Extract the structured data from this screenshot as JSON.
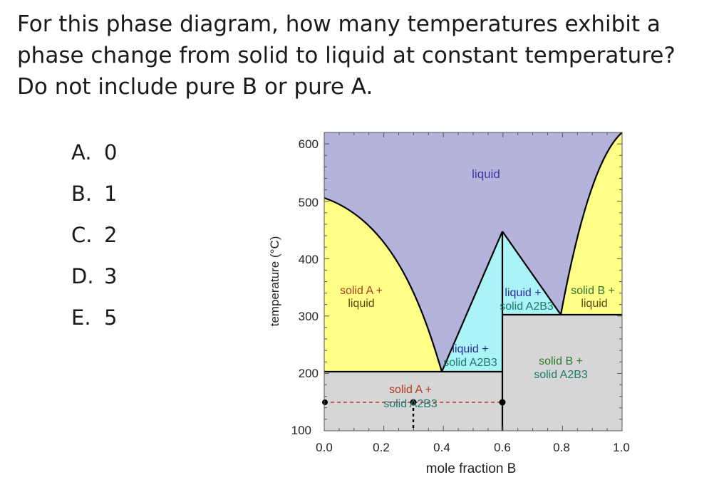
{
  "question": {
    "text": "For this phase diagram, how many temperatures exhibit a phase change from solid to liquid at constant temperature? Do not include pure B or pure A."
  },
  "choices": [
    {
      "letter": "A.",
      "value": "0"
    },
    {
      "letter": "B.",
      "value": "1"
    },
    {
      "letter": "C.",
      "value": "2"
    },
    {
      "letter": "D.",
      "value": "3"
    },
    {
      "letter": "E.",
      "value": "5"
    }
  ],
  "diagram": {
    "xlabel": "mole fraction B",
    "ylabel": "temperature (°C)",
    "x_ticks": [
      "0.0",
      "0.2",
      "0.4",
      "0.6",
      "0.8",
      "1.0"
    ],
    "y_ticks": [
      "100",
      "200",
      "300",
      "400",
      "500",
      "600"
    ],
    "xlim": [
      0.0,
      1.0
    ],
    "ylim": [
      100,
      620
    ],
    "colors": {
      "liquid": "#b3b3dc",
      "solid_plus_liquid": "#ffff88",
      "compound_plus_liquid": "#aaf3f7",
      "solid_solid": "#d6d6d6",
      "line": "#000000",
      "dashed_marker": "#c23c3c"
    },
    "regions": {
      "liquid": "liquid",
      "solid_a_liquid": [
        "solid A +",
        "liquid"
      ],
      "liquid_solid_a2b3_left": [
        "liquid +",
        "solid A2B3"
      ],
      "liquid_solid_a2b3_right": [
        "liquid +",
        "solid A2B3"
      ],
      "solid_b_liquid": [
        "solid B +",
        "liquid"
      ],
      "solid_a_solid_a2b3": [
        "solid A +",
        "solid A2B3"
      ],
      "solid_b_solid_a2b3": [
        "solid B +",
        "solid A2B3"
      ]
    },
    "key_points": {
      "melting_point_A_C": 500,
      "melting_point_B_C": 600,
      "compound_melting_point_C": 450,
      "compound_composition": 0.6,
      "eutectic_1": {
        "x": 0.4,
        "T": 200
      },
      "eutectic_2": {
        "x": 0.8,
        "T": 300
      },
      "marker_point": {
        "x": 0.3,
        "T": 170
      }
    }
  }
}
